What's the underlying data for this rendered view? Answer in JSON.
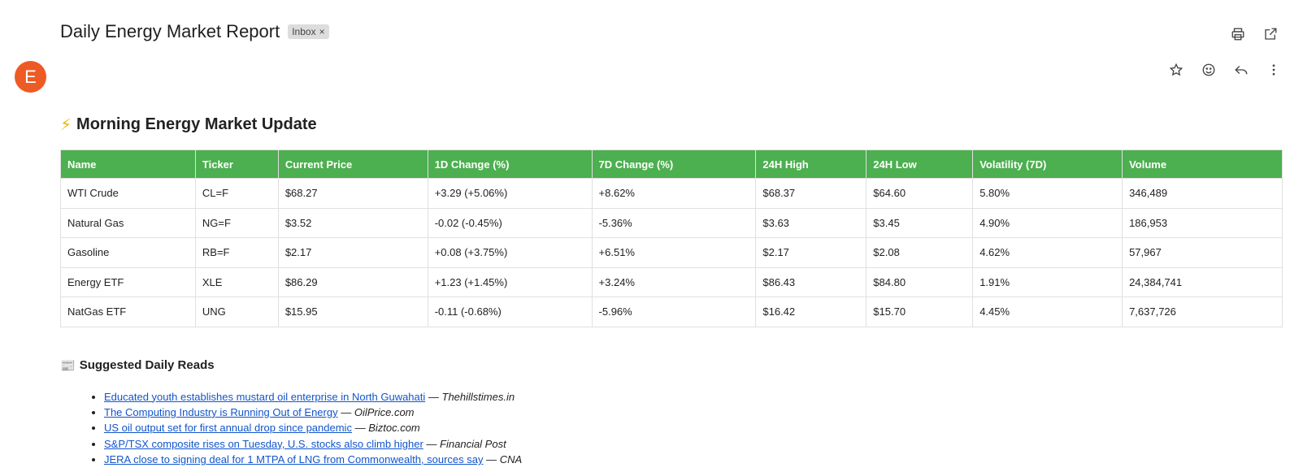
{
  "email": {
    "subject": "Daily Energy Market Report",
    "label": "Inbox",
    "label_close": "×",
    "sender_initial": "E"
  },
  "icons": {
    "top": [
      "print-icon",
      "open-in-new-icon"
    ],
    "message": [
      "star-icon",
      "emoji-icon",
      "reply-icon",
      "more-vert-icon"
    ]
  },
  "content": {
    "heading_icon": "⚡",
    "heading": "Morning Energy Market Update",
    "table": {
      "headers": [
        "Name",
        "Ticker",
        "Current Price",
        "1D Change (%)",
        "7D Change (%)",
        "24H High",
        "24H Low",
        "Volatility (7D)",
        "Volume"
      ],
      "rows": [
        [
          "WTI Crude",
          "CL=F",
          "$68.27",
          "+3.29 (+5.06%)",
          "+8.62%",
          "$68.37",
          "$64.60",
          "5.80%",
          "346,489"
        ],
        [
          "Natural Gas",
          "NG=F",
          "$3.52",
          "-0.02 (-0.45%)",
          "-5.36%",
          "$3.63",
          "$3.45",
          "4.90%",
          "186,953"
        ],
        [
          "Gasoline",
          "RB=F",
          "$2.17",
          "+0.08 (+3.75%)",
          "+6.51%",
          "$2.17",
          "$2.08",
          "4.62%",
          "57,967"
        ],
        [
          "Energy ETF",
          "XLE",
          "$86.29",
          "+1.23 (+1.45%)",
          "+3.24%",
          "$86.43",
          "$84.80",
          "1.91%",
          "24,384,741"
        ],
        [
          "NatGas ETF",
          "UNG",
          "$15.95",
          "-0.11 (-0.68%)",
          "-5.96%",
          "$16.42",
          "$15.70",
          "4.45%",
          "7,637,726"
        ]
      ]
    },
    "reads_icon": "📰",
    "reads_heading": "Suggested Daily Reads",
    "reads": [
      {
        "title": "Educated youth establishes mustard oil enterprise in North Guwahati",
        "source": "Thehillstimes.in"
      },
      {
        "title": "The Computing Industry is Running Out of Energy",
        "source": "OilPrice.com"
      },
      {
        "title": "US oil output set for first annual drop since pandemic",
        "source": "Biztoc.com"
      },
      {
        "title": "S&P/TSX composite rises on Tuesday, U.S. stocks also climb higher",
        "source": "Financial Post"
      },
      {
        "title": "JERA close to signing deal for 1 MTPA of LNG from Commonwealth, sources say",
        "source": "CNA"
      }
    ],
    "separator": " — "
  },
  "colors": {
    "avatar": "#ee5a24",
    "table_header": "#4caf50",
    "link": "#1155cc"
  }
}
